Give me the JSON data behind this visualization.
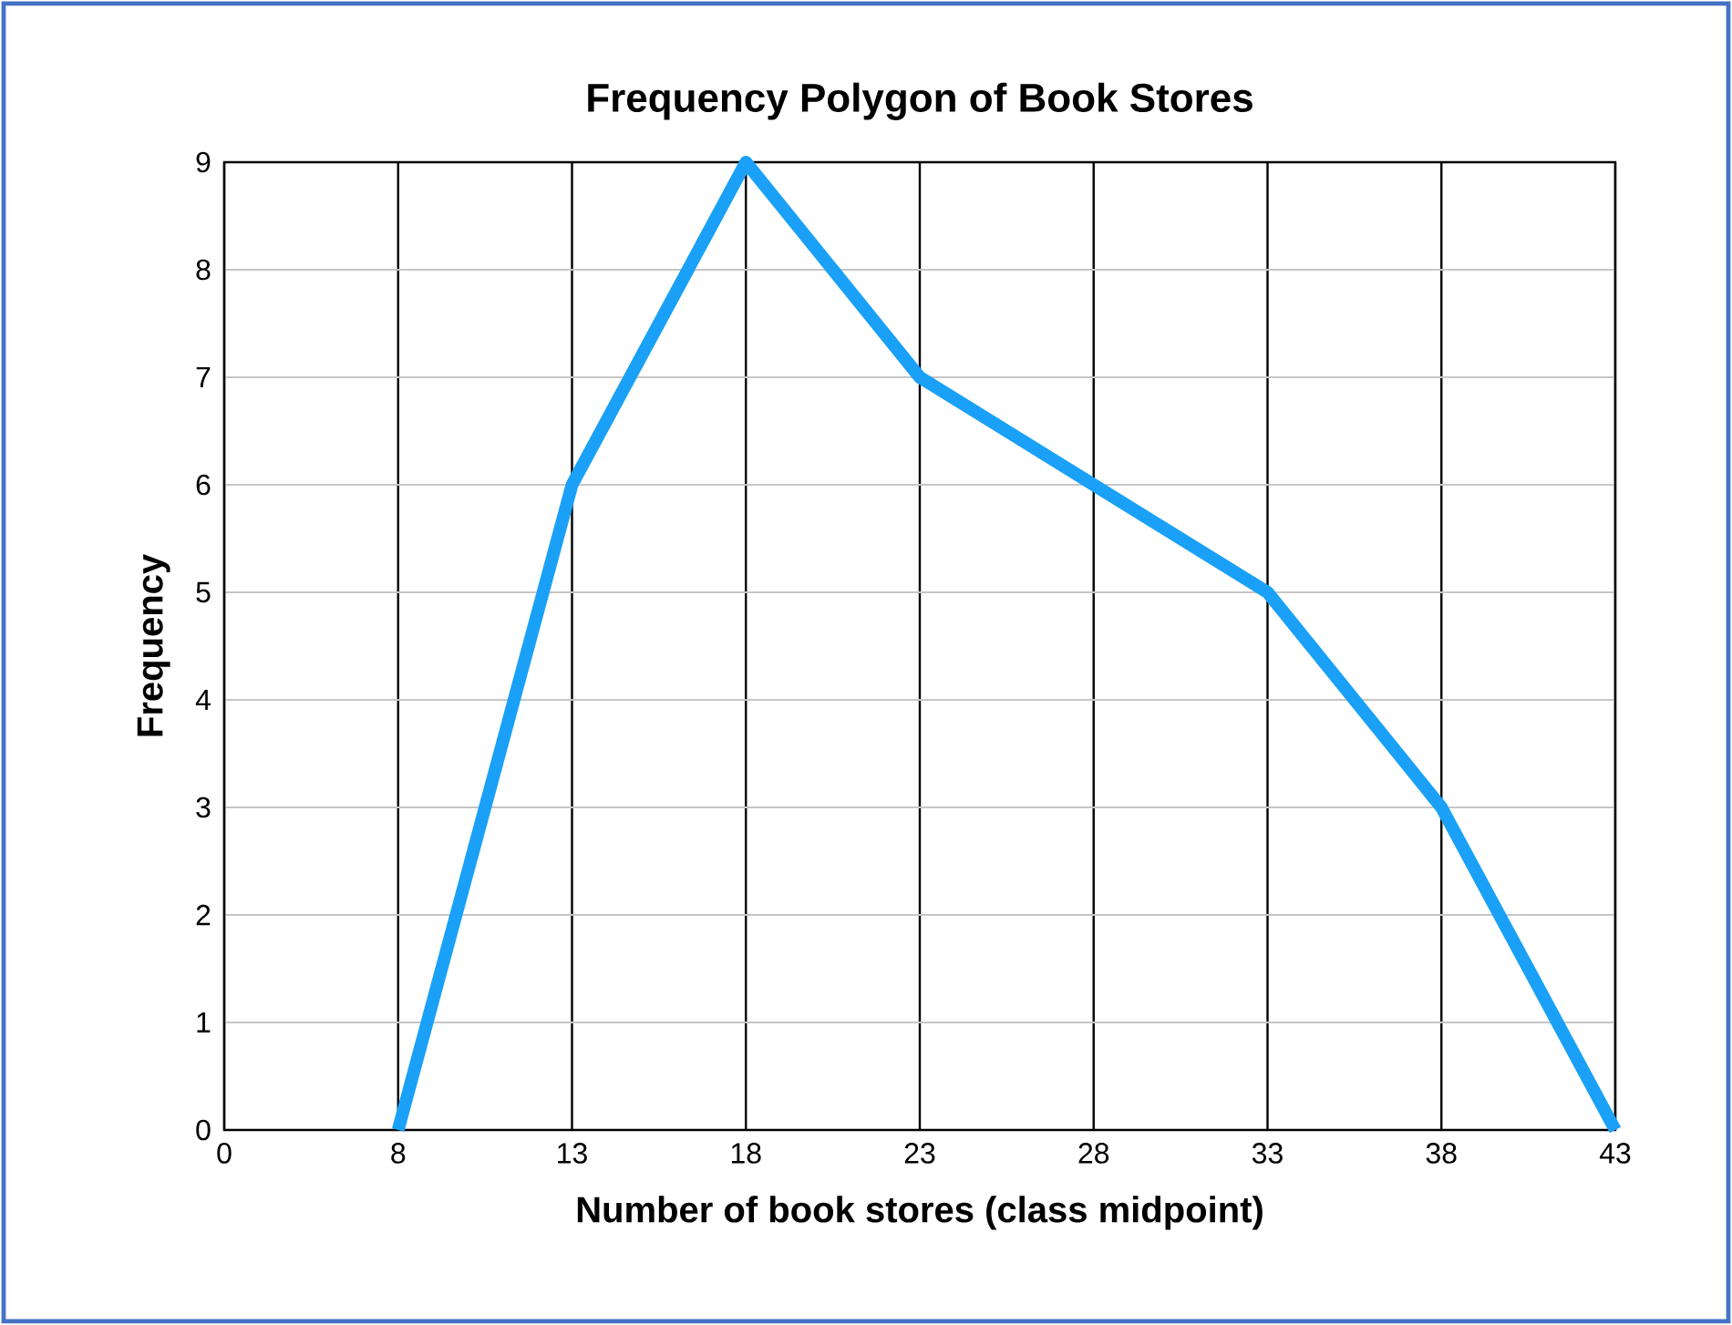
{
  "chart_data": {
    "type": "line",
    "title": "Frequency Polygon of Book Stores",
    "xlabel": "Number of book stores (class midpoint)",
    "ylabel": "Frequency",
    "categories": [
      "0",
      "8",
      "13",
      "18",
      "23",
      "28",
      "33",
      "38",
      "43"
    ],
    "series": [
      {
        "color": "#1aa1f7",
        "values": [
          null,
          0,
          6,
          9,
          7,
          6,
          5,
          3,
          0
        ]
      }
    ],
    "ylim": [
      0,
      9
    ],
    "yticks": [
      0,
      1,
      2,
      3,
      4,
      5,
      6,
      7,
      8,
      9
    ],
    "grid": true,
    "marker": "none",
    "line_style": "solid"
  }
}
